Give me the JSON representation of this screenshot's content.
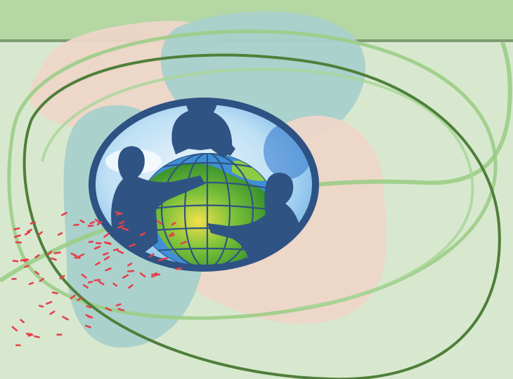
{
  "slide": {
    "background_color": "#d8e8cf",
    "band_color": "#b4d7a4",
    "band_rule_color": "#7d9b72",
    "decor": {
      "peach_blob_color": "#edd6c8",
      "teal_blob_color": "#a9d0cb",
      "ring_color_light": "#9ccd86",
      "ring_color_dark": "#4f7f3a",
      "dash_color": "#e5404c"
    },
    "emblem": {
      "icon": "globe-with-three-people-logo",
      "frame_color": "#2d5283",
      "silhouette_color": "#2f5483",
      "ocean_color": "#58a8e6",
      "land_color": "#5db52f"
    }
  }
}
